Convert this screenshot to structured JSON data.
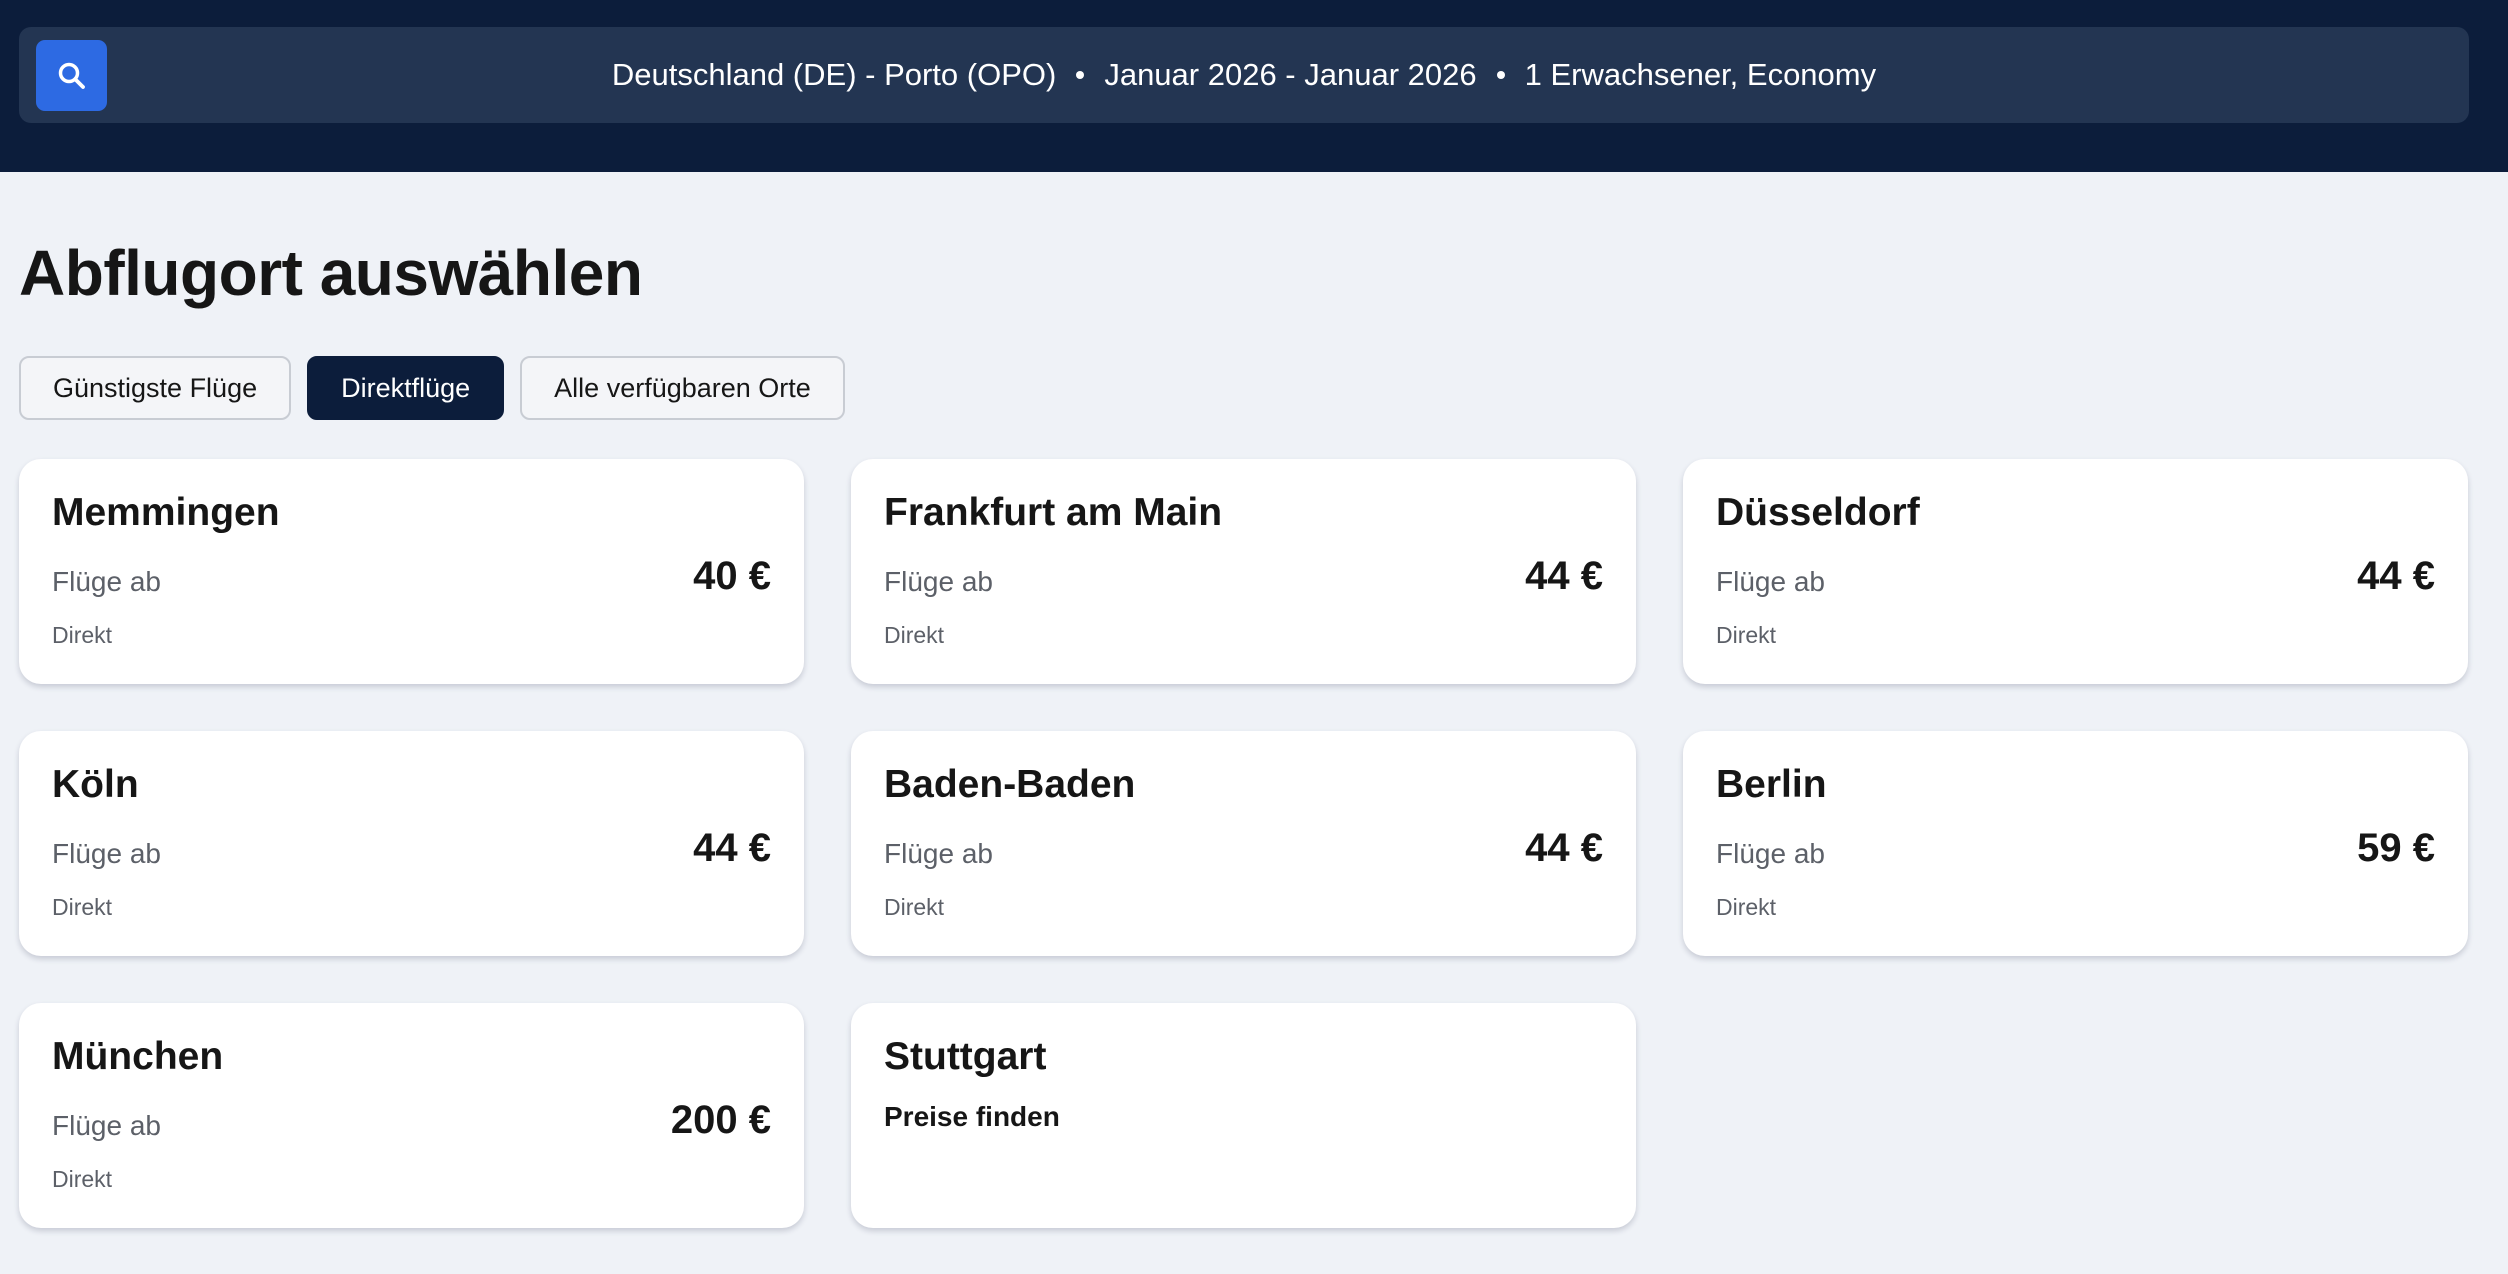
{
  "header": {
    "search_icon": "search-icon",
    "route": "Deutschland (DE) - Porto (OPO)",
    "dates": "Januar 2026 - Januar 2026",
    "passengers": "1 Erwachsener, Economy",
    "colors": {
      "bar": "#0c1d3b",
      "field": "#233552",
      "button": "#2d6ae3"
    }
  },
  "page": {
    "title": "Abflugort auswählen"
  },
  "filters": [
    {
      "label": "Günstigste Flüge",
      "active": false
    },
    {
      "label": "Direktflüge",
      "active": true
    },
    {
      "label": "Alle verfügbaren Orte",
      "active": false
    }
  ],
  "cards": [
    {
      "city": "Memmingen",
      "from_label": "Flüge ab",
      "price": "40 €",
      "note": "Direkt"
    },
    {
      "city": "Frankfurt am Main",
      "from_label": "Flüge ab",
      "price": "44 €",
      "note": "Direkt"
    },
    {
      "city": "Düsseldorf",
      "from_label": "Flüge ab",
      "price": "44 €",
      "note": "Direkt"
    },
    {
      "city": "Köln",
      "from_label": "Flüge ab",
      "price": "44 €",
      "note": "Direkt"
    },
    {
      "city": "Baden-Baden",
      "from_label": "Flüge ab",
      "price": "44 €",
      "note": "Direkt"
    },
    {
      "city": "Berlin",
      "from_label": "Flüge ab",
      "price": "59 €",
      "note": "Direkt"
    },
    {
      "city": "München",
      "from_label": "Flüge ab",
      "price": "200 €",
      "note": "Direkt"
    },
    {
      "city": "Stuttgart",
      "find_label": "Preise finden"
    }
  ]
}
